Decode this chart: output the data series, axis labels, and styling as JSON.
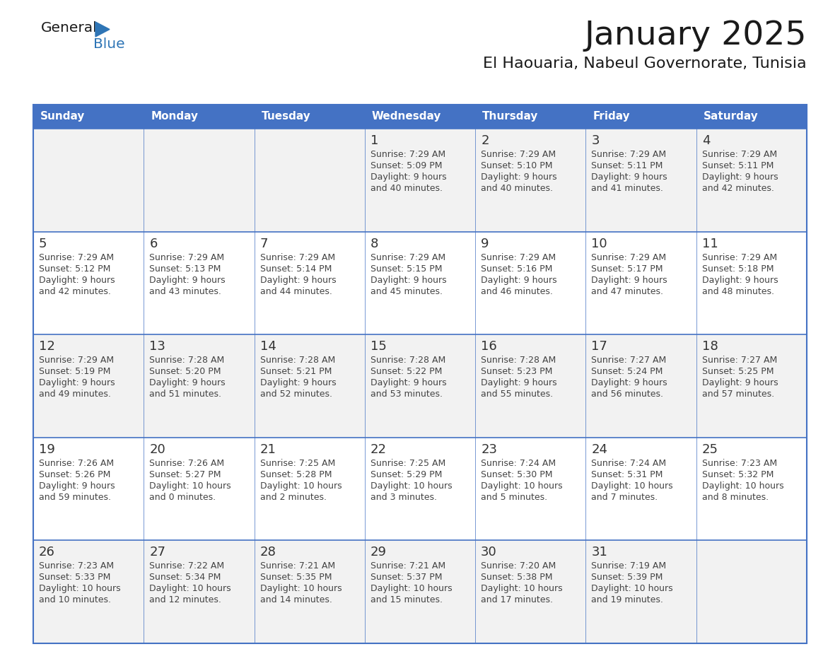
{
  "title": "January 2025",
  "subtitle": "El Haouaria, Nabeul Governorate, Tunisia",
  "days_of_week": [
    "Sunday",
    "Monday",
    "Tuesday",
    "Wednesday",
    "Thursday",
    "Friday",
    "Saturday"
  ],
  "header_bg": "#4472C4",
  "header_text": "#FFFFFF",
  "cell_bg_odd": "#F2F2F2",
  "cell_bg_even": "#FFFFFF",
  "border_color": "#4472C4",
  "row_line_color": "#4472C4",
  "day_num_color": "#333333",
  "text_color": "#444444",
  "title_color": "#1a1a1a",
  "logo_general_color": "#1a1a1a",
  "logo_blue_color": "#2E75B6",
  "logo_triangle_color": "#2E75B6",
  "weeks": [
    {
      "days": [
        {
          "date": null,
          "sunrise": null,
          "sunset": null,
          "daylight": null
        },
        {
          "date": null,
          "sunrise": null,
          "sunset": null,
          "daylight": null
        },
        {
          "date": null,
          "sunrise": null,
          "sunset": null,
          "daylight": null
        },
        {
          "date": 1,
          "sunrise": "7:29 AM",
          "sunset": "5:09 PM",
          "daylight": "9 hours and 40 minutes."
        },
        {
          "date": 2,
          "sunrise": "7:29 AM",
          "sunset": "5:10 PM",
          "daylight": "9 hours and 40 minutes."
        },
        {
          "date": 3,
          "sunrise": "7:29 AM",
          "sunset": "5:11 PM",
          "daylight": "9 hours and 41 minutes."
        },
        {
          "date": 4,
          "sunrise": "7:29 AM",
          "sunset": "5:11 PM",
          "daylight": "9 hours and 42 minutes."
        }
      ]
    },
    {
      "days": [
        {
          "date": 5,
          "sunrise": "7:29 AM",
          "sunset": "5:12 PM",
          "daylight": "9 hours and 42 minutes."
        },
        {
          "date": 6,
          "sunrise": "7:29 AM",
          "sunset": "5:13 PM",
          "daylight": "9 hours and 43 minutes."
        },
        {
          "date": 7,
          "sunrise": "7:29 AM",
          "sunset": "5:14 PM",
          "daylight": "9 hours and 44 minutes."
        },
        {
          "date": 8,
          "sunrise": "7:29 AM",
          "sunset": "5:15 PM",
          "daylight": "9 hours and 45 minutes."
        },
        {
          "date": 9,
          "sunrise": "7:29 AM",
          "sunset": "5:16 PM",
          "daylight": "9 hours and 46 minutes."
        },
        {
          "date": 10,
          "sunrise": "7:29 AM",
          "sunset": "5:17 PM",
          "daylight": "9 hours and 47 minutes."
        },
        {
          "date": 11,
          "sunrise": "7:29 AM",
          "sunset": "5:18 PM",
          "daylight": "9 hours and 48 minutes."
        }
      ]
    },
    {
      "days": [
        {
          "date": 12,
          "sunrise": "7:29 AM",
          "sunset": "5:19 PM",
          "daylight": "9 hours and 49 minutes."
        },
        {
          "date": 13,
          "sunrise": "7:28 AM",
          "sunset": "5:20 PM",
          "daylight": "9 hours and 51 minutes."
        },
        {
          "date": 14,
          "sunrise": "7:28 AM",
          "sunset": "5:21 PM",
          "daylight": "9 hours and 52 minutes."
        },
        {
          "date": 15,
          "sunrise": "7:28 AM",
          "sunset": "5:22 PM",
          "daylight": "9 hours and 53 minutes."
        },
        {
          "date": 16,
          "sunrise": "7:28 AM",
          "sunset": "5:23 PM",
          "daylight": "9 hours and 55 minutes."
        },
        {
          "date": 17,
          "sunrise": "7:27 AM",
          "sunset": "5:24 PM",
          "daylight": "9 hours and 56 minutes."
        },
        {
          "date": 18,
          "sunrise": "7:27 AM",
          "sunset": "5:25 PM",
          "daylight": "9 hours and 57 minutes."
        }
      ]
    },
    {
      "days": [
        {
          "date": 19,
          "sunrise": "7:26 AM",
          "sunset": "5:26 PM",
          "daylight": "9 hours and 59 minutes."
        },
        {
          "date": 20,
          "sunrise": "7:26 AM",
          "sunset": "5:27 PM",
          "daylight": "10 hours and 0 minutes."
        },
        {
          "date": 21,
          "sunrise": "7:25 AM",
          "sunset": "5:28 PM",
          "daylight": "10 hours and 2 minutes."
        },
        {
          "date": 22,
          "sunrise": "7:25 AM",
          "sunset": "5:29 PM",
          "daylight": "10 hours and 3 minutes."
        },
        {
          "date": 23,
          "sunrise": "7:24 AM",
          "sunset": "5:30 PM",
          "daylight": "10 hours and 5 minutes."
        },
        {
          "date": 24,
          "sunrise": "7:24 AM",
          "sunset": "5:31 PM",
          "daylight": "10 hours and 7 minutes."
        },
        {
          "date": 25,
          "sunrise": "7:23 AM",
          "sunset": "5:32 PM",
          "daylight": "10 hours and 8 minutes."
        }
      ]
    },
    {
      "days": [
        {
          "date": 26,
          "sunrise": "7:23 AM",
          "sunset": "5:33 PM",
          "daylight": "10 hours and 10 minutes."
        },
        {
          "date": 27,
          "sunrise": "7:22 AM",
          "sunset": "5:34 PM",
          "daylight": "10 hours and 12 minutes."
        },
        {
          "date": 28,
          "sunrise": "7:21 AM",
          "sunset": "5:35 PM",
          "daylight": "10 hours and 14 minutes."
        },
        {
          "date": 29,
          "sunrise": "7:21 AM",
          "sunset": "5:37 PM",
          "daylight": "10 hours and 15 minutes."
        },
        {
          "date": 30,
          "sunrise": "7:20 AM",
          "sunset": "5:38 PM",
          "daylight": "10 hours and 17 minutes."
        },
        {
          "date": 31,
          "sunrise": "7:19 AM",
          "sunset": "5:39 PM",
          "daylight": "10 hours and 19 minutes."
        },
        {
          "date": null,
          "sunrise": null,
          "sunset": null,
          "daylight": null
        }
      ]
    }
  ]
}
